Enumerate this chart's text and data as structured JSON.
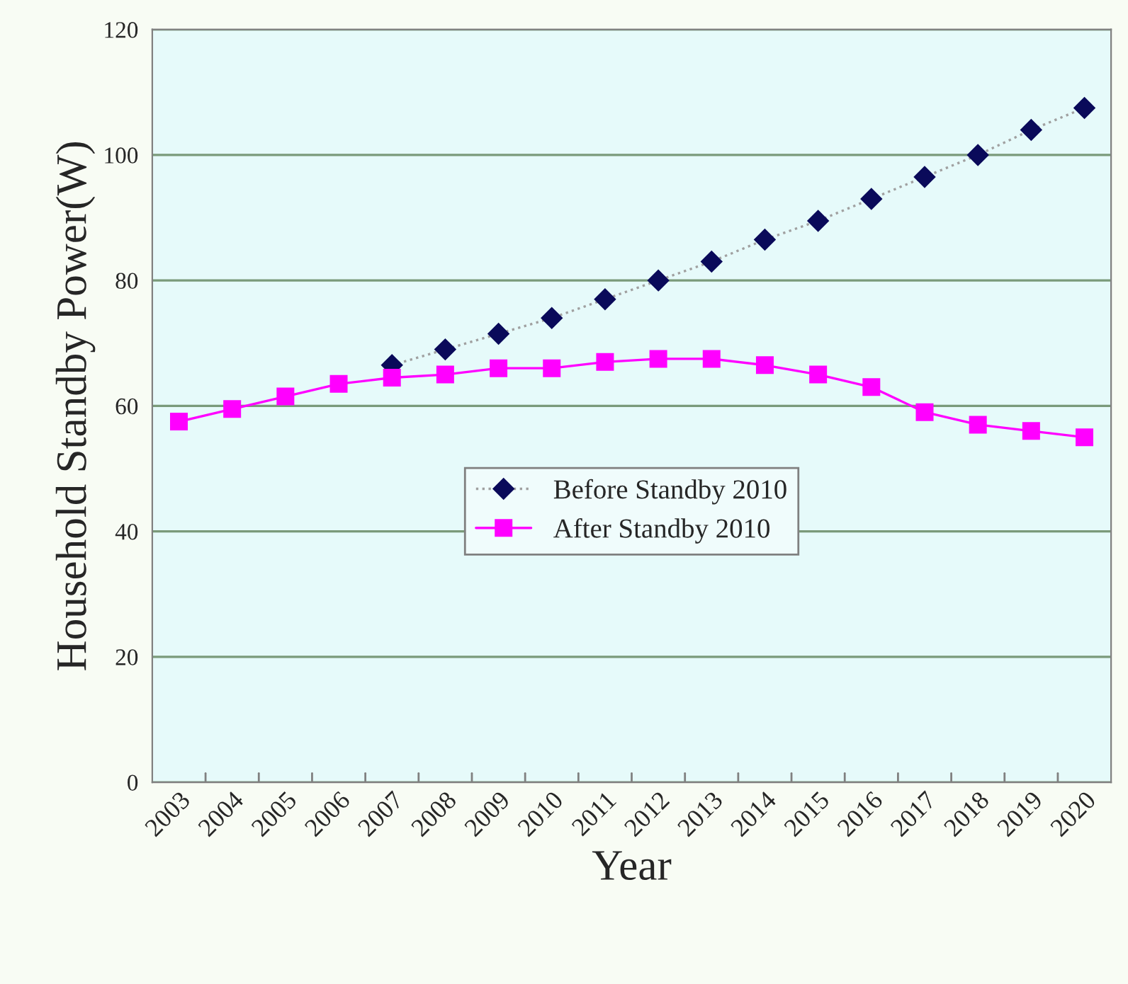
{
  "chart_data": {
    "type": "line",
    "xlabel": "Year",
    "ylabel": "Household Standby Power(W)",
    "categories": [
      "2003",
      "2004",
      "2005",
      "2006",
      "2007",
      "2008",
      "2009",
      "2010",
      "2011",
      "2012",
      "2013",
      "2014",
      "2015",
      "2016",
      "2017",
      "2018",
      "2019",
      "2020"
    ],
    "series": [
      {
        "name": "Before Standby 2010",
        "color": "#0a0a5a",
        "marker": "diamond",
        "line_style": "dotted",
        "values": [
          null,
          null,
          null,
          null,
          66.5,
          69,
          71.5,
          74,
          77,
          80,
          83,
          86.5,
          89.5,
          93,
          96.5,
          100,
          104,
          107.5
        ]
      },
      {
        "name": "After Standby 2010",
        "color": "#ff00ff",
        "marker": "square",
        "line_style": "solid",
        "values": [
          57.5,
          59.5,
          61.5,
          63.5,
          64.5,
          65,
          66,
          66,
          67,
          67.5,
          67.5,
          66.5,
          65,
          63,
          59,
          57,
          56,
          55
        ]
      }
    ],
    "ylim": [
      0,
      120
    ],
    "yticks": [
      0,
      20,
      40,
      60,
      80,
      100,
      120
    ],
    "grid": "y",
    "legend": "center"
  }
}
